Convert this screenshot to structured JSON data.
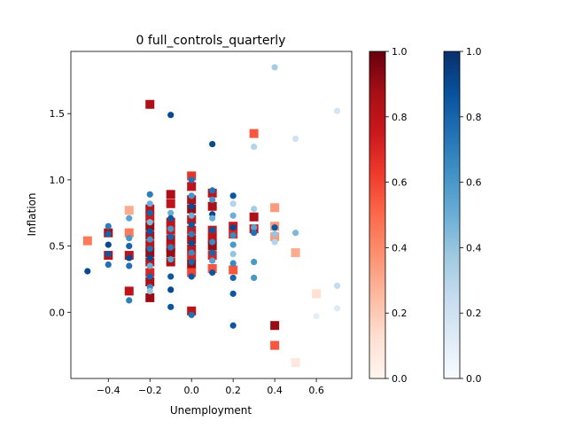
{
  "chart_data": {
    "type": "scatter",
    "title": "0 full_controls_quarterly",
    "xlabel": "Unemployment",
    "ylabel": "Inflation",
    "xlim": [
      -0.58,
      0.77
    ],
    "ylim": [
      -0.5,
      1.97
    ],
    "xticks": [
      -0.4,
      -0.2,
      0.0,
      0.2,
      0.4,
      0.6
    ],
    "xtick_labels": [
      "−0.4",
      "−0.2",
      "0.0",
      "0.2",
      "0.4",
      "0.6"
    ],
    "yticks": [
      0.0,
      0.5,
      1.0,
      1.5
    ],
    "ytick_labels": [
      "0.0",
      "0.5",
      "1.0",
      "1.5"
    ],
    "grid": false,
    "colorbars": [
      {
        "cmap": "Reds",
        "ticks": [
          0.0,
          0.2,
          0.4,
          0.6,
          0.8,
          1.0
        ],
        "tick_labels": [
          "0.0",
          "0.2",
          "0.4",
          "0.6",
          "0.8",
          "1.0"
        ]
      },
      {
        "cmap": "Blues",
        "ticks": [
          0.0,
          0.2,
          0.4,
          0.6,
          0.8,
          1.0
        ],
        "tick_labels": [
          "0.0",
          "0.2",
          "0.4",
          "0.6",
          "0.8",
          "1.0"
        ]
      }
    ],
    "series": [
      {
        "marker": "square",
        "cmap": "Reds",
        "points": [
          {
            "x": -0.5,
            "y": 0.54,
            "c": 0.45
          },
          {
            "x": -0.4,
            "y": 0.6,
            "c": 0.85
          },
          {
            "x": -0.4,
            "y": 0.43,
            "c": 0.8
          },
          {
            "x": -0.3,
            "y": 0.77,
            "c": 0.3
          },
          {
            "x": -0.3,
            "y": 0.6,
            "c": 0.45
          },
          {
            "x": -0.3,
            "y": 0.43,
            "c": 0.8
          },
          {
            "x": -0.3,
            "y": 0.16,
            "c": 0.8
          },
          {
            "x": -0.2,
            "y": 1.57,
            "c": 0.85
          },
          {
            "x": -0.2,
            "y": 0.78,
            "c": 0.8
          },
          {
            "x": -0.2,
            "y": 0.72,
            "c": 0.75
          },
          {
            "x": -0.2,
            "y": 0.65,
            "c": 0.9
          },
          {
            "x": -0.2,
            "y": 0.58,
            "c": 0.85
          },
          {
            "x": -0.2,
            "y": 0.51,
            "c": 0.8
          },
          {
            "x": -0.2,
            "y": 0.45,
            "c": 0.9
          },
          {
            "x": -0.2,
            "y": 0.38,
            "c": 0.8
          },
          {
            "x": -0.2,
            "y": 0.3,
            "c": 0.7
          },
          {
            "x": -0.2,
            "y": 0.23,
            "c": 0.85
          },
          {
            "x": -0.2,
            "y": 0.11,
            "c": 0.9
          },
          {
            "x": -0.1,
            "y": 0.89,
            "c": 0.85
          },
          {
            "x": -0.1,
            "y": 0.82,
            "c": 0.8
          },
          {
            "x": -0.1,
            "y": 0.68,
            "c": 0.8
          },
          {
            "x": -0.1,
            "y": 0.62,
            "c": 0.75
          },
          {
            "x": -0.1,
            "y": 0.55,
            "c": 0.85
          },
          {
            "x": -0.1,
            "y": 0.49,
            "c": 0.8
          },
          {
            "x": -0.1,
            "y": 0.45,
            "c": 0.9
          },
          {
            "x": -0.1,
            "y": 0.38,
            "c": 0.85
          },
          {
            "x": 0.0,
            "y": 1.03,
            "c": 0.65
          },
          {
            "x": 0.0,
            "y": 0.95,
            "c": 0.8
          },
          {
            "x": 0.0,
            "y": 0.85,
            "c": 0.85
          },
          {
            "x": 0.0,
            "y": 0.78,
            "c": 0.9
          },
          {
            "x": 0.0,
            "y": 0.7,
            "c": 0.8
          },
          {
            "x": 0.0,
            "y": 0.62,
            "c": 0.75
          },
          {
            "x": 0.0,
            "y": 0.55,
            "c": 0.85
          },
          {
            "x": 0.0,
            "y": 0.48,
            "c": 0.8
          },
          {
            "x": 0.0,
            "y": 0.42,
            "c": 0.7
          },
          {
            "x": 0.0,
            "y": 0.36,
            "c": 0.9
          },
          {
            "x": 0.0,
            "y": 0.3,
            "c": 0.6
          },
          {
            "x": 0.0,
            "y": 0.01,
            "c": 0.8
          },
          {
            "x": 0.1,
            "y": 0.9,
            "c": 0.8
          },
          {
            "x": 0.1,
            "y": 0.8,
            "c": 0.85
          },
          {
            "x": 0.1,
            "y": 0.62,
            "c": 0.75
          },
          {
            "x": 0.1,
            "y": 0.56,
            "c": 0.8
          },
          {
            "x": 0.1,
            "y": 0.5,
            "c": 0.9
          },
          {
            "x": 0.1,
            "y": 0.43,
            "c": 0.7
          },
          {
            "x": 0.1,
            "y": 0.33,
            "c": 0.55
          },
          {
            "x": 0.2,
            "y": 0.65,
            "c": 0.75
          },
          {
            "x": 0.2,
            "y": 0.59,
            "c": 0.7
          },
          {
            "x": 0.2,
            "y": 0.32,
            "c": 0.55
          },
          {
            "x": 0.3,
            "y": 1.35,
            "c": 0.55
          },
          {
            "x": 0.3,
            "y": 0.72,
            "c": 0.85
          },
          {
            "x": 0.3,
            "y": 0.63,
            "c": 0.8
          },
          {
            "x": 0.4,
            "y": 0.79,
            "c": 0.35
          },
          {
            "x": 0.4,
            "y": 0.65,
            "c": 0.35
          },
          {
            "x": 0.4,
            "y": 0.57,
            "c": 0.35
          },
          {
            "x": 0.4,
            "y": -0.1,
            "c": 0.9
          },
          {
            "x": 0.4,
            "y": -0.25,
            "c": 0.55
          },
          {
            "x": 0.5,
            "y": 0.45,
            "c": 0.3
          },
          {
            "x": 0.5,
            "y": -0.38,
            "c": 0.08
          },
          {
            "x": 0.6,
            "y": 0.14,
            "c": 0.12
          }
        ]
      },
      {
        "marker": "circle",
        "cmap": "Blues",
        "points": [
          {
            "x": -0.5,
            "y": 0.31,
            "c": 0.9
          },
          {
            "x": -0.4,
            "y": 0.65,
            "c": 0.7
          },
          {
            "x": -0.4,
            "y": 0.59,
            "c": 0.8
          },
          {
            "x": -0.4,
            "y": 0.51,
            "c": 0.9
          },
          {
            "x": -0.4,
            "y": 0.44,
            "c": 0.85
          },
          {
            "x": -0.4,
            "y": 0.36,
            "c": 0.75
          },
          {
            "x": -0.3,
            "y": 0.71,
            "c": 0.55
          },
          {
            "x": -0.3,
            "y": 0.56,
            "c": 0.6
          },
          {
            "x": -0.3,
            "y": 0.5,
            "c": 0.8
          },
          {
            "x": -0.3,
            "y": 0.41,
            "c": 0.9
          },
          {
            "x": -0.3,
            "y": 0.35,
            "c": 0.75
          },
          {
            "x": -0.3,
            "y": 0.09,
            "c": 0.7
          },
          {
            "x": -0.2,
            "y": 0.89,
            "c": 0.7
          },
          {
            "x": -0.2,
            "y": 0.82,
            "c": 0.5
          },
          {
            "x": -0.2,
            "y": 0.75,
            "c": 0.8
          },
          {
            "x": -0.2,
            "y": 0.68,
            "c": 0.45
          },
          {
            "x": -0.2,
            "y": 0.61,
            "c": 0.85
          },
          {
            "x": -0.2,
            "y": 0.55,
            "c": 0.6
          },
          {
            "x": -0.2,
            "y": 0.48,
            "c": 0.75
          },
          {
            "x": -0.2,
            "y": 0.41,
            "c": 0.9
          },
          {
            "x": -0.2,
            "y": 0.35,
            "c": 0.5
          },
          {
            "x": -0.2,
            "y": 0.27,
            "c": 0.8
          },
          {
            "x": -0.2,
            "y": 0.19,
            "c": 0.65
          },
          {
            "x": -0.2,
            "y": 0.16,
            "c": 0.4
          },
          {
            "x": -0.1,
            "y": 1.49,
            "c": 0.9
          },
          {
            "x": -0.1,
            "y": 0.75,
            "c": 0.5
          },
          {
            "x": -0.1,
            "y": 0.71,
            "c": 0.85
          },
          {
            "x": -0.1,
            "y": 0.63,
            "c": 0.6
          },
          {
            "x": -0.1,
            "y": 0.57,
            "c": 0.8
          },
          {
            "x": -0.1,
            "y": 0.49,
            "c": 0.7
          },
          {
            "x": -0.1,
            "y": 0.4,
            "c": 0.55
          },
          {
            "x": -0.1,
            "y": 0.27,
            "c": 0.85
          },
          {
            "x": -0.1,
            "y": 0.17,
            "c": 0.9
          },
          {
            "x": -0.1,
            "y": 0.04,
            "c": 0.85
          },
          {
            "x": 0.0,
            "y": 1.0,
            "c": 0.75
          },
          {
            "x": 0.0,
            "y": 0.88,
            "c": 0.6
          },
          {
            "x": 0.0,
            "y": 0.8,
            "c": 0.9
          },
          {
            "x": 0.0,
            "y": 0.73,
            "c": 0.5
          },
          {
            "x": 0.0,
            "y": 0.66,
            "c": 0.85
          },
          {
            "x": 0.0,
            "y": 0.59,
            "c": 0.7
          },
          {
            "x": 0.0,
            "y": 0.52,
            "c": 0.9
          },
          {
            "x": 0.0,
            "y": 0.45,
            "c": 0.65
          },
          {
            "x": 0.0,
            "y": 0.38,
            "c": 0.8
          },
          {
            "x": 0.0,
            "y": 0.27,
            "c": 0.85
          },
          {
            "x": 0.0,
            "y": -0.02,
            "c": 0.75
          },
          {
            "x": 0.1,
            "y": 1.27,
            "c": 0.9
          },
          {
            "x": 0.1,
            "y": 0.92,
            "c": 0.75
          },
          {
            "x": 0.1,
            "y": 0.85,
            "c": 0.6
          },
          {
            "x": 0.1,
            "y": 0.74,
            "c": 0.9
          },
          {
            "x": 0.1,
            "y": 0.71,
            "c": 0.5
          },
          {
            "x": 0.1,
            "y": 0.62,
            "c": 0.85
          },
          {
            "x": 0.1,
            "y": 0.53,
            "c": 0.65
          },
          {
            "x": 0.1,
            "y": 0.45,
            "c": 0.8
          },
          {
            "x": 0.1,
            "y": 0.39,
            "c": 0.55
          },
          {
            "x": 0.1,
            "y": 0.3,
            "c": 0.85
          },
          {
            "x": 0.2,
            "y": 0.88,
            "c": 0.85
          },
          {
            "x": 0.2,
            "y": 0.82,
            "c": 0.3
          },
          {
            "x": 0.2,
            "y": 0.73,
            "c": 0.5
          },
          {
            "x": 0.2,
            "y": 0.64,
            "c": 0.9
          },
          {
            "x": 0.2,
            "y": 0.58,
            "c": 0.65
          },
          {
            "x": 0.2,
            "y": 0.51,
            "c": 0.6
          },
          {
            "x": 0.2,
            "y": 0.44,
            "c": 0.4
          },
          {
            "x": 0.2,
            "y": 0.37,
            "c": 0.65
          },
          {
            "x": 0.2,
            "y": 0.26,
            "c": 0.8
          },
          {
            "x": 0.2,
            "y": 0.14,
            "c": 0.85
          },
          {
            "x": 0.2,
            "y": -0.1,
            "c": 0.85
          },
          {
            "x": 0.3,
            "y": 1.25,
            "c": 0.3
          },
          {
            "x": 0.3,
            "y": 0.78,
            "c": 0.35
          },
          {
            "x": 0.3,
            "y": 0.64,
            "c": 0.55
          },
          {
            "x": 0.3,
            "y": 0.6,
            "c": 0.75
          },
          {
            "x": 0.3,
            "y": 0.38,
            "c": 0.6
          },
          {
            "x": 0.3,
            "y": 0.26,
            "c": 0.6
          },
          {
            "x": 0.4,
            "y": 1.85,
            "c": 0.35
          },
          {
            "x": 0.4,
            "y": 0.64,
            "c": 0.85
          },
          {
            "x": 0.4,
            "y": 0.59,
            "c": 0.4
          },
          {
            "x": 0.4,
            "y": 0.53,
            "c": 0.3
          },
          {
            "x": 0.5,
            "y": 1.31,
            "c": 0.2
          },
          {
            "x": 0.5,
            "y": 0.6,
            "c": 0.45
          },
          {
            "x": 0.6,
            "y": -0.03,
            "c": 0.1
          },
          {
            "x": 0.7,
            "y": 1.52,
            "c": 0.18
          },
          {
            "x": 0.7,
            "y": 0.2,
            "c": 0.25
          },
          {
            "x": 0.7,
            "y": 0.03,
            "c": 0.12
          }
        ]
      }
    ]
  }
}
